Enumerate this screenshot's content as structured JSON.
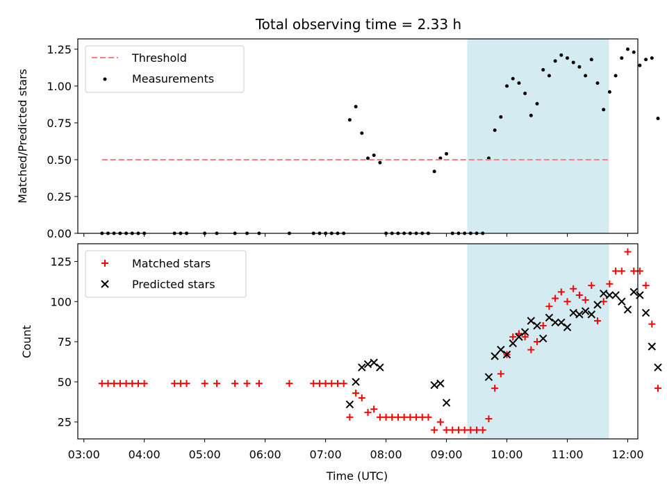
{
  "figure_title": "Total observing time = 2.33 h",
  "colors": {
    "threshold": "#ff7f7f",
    "measurement": "#000000",
    "matched": "#ff0000",
    "predicted": "#000000",
    "span": "#add8e6"
  },
  "chart_data": [
    {
      "type": "scatter",
      "panel": "top",
      "title": "Total observing time = 2.33 h",
      "xlabel": "",
      "ylabel": "Matched/Predicted stars",
      "ylim": [
        0,
        1.32
      ],
      "yticks": [
        0.0,
        0.25,
        0.5,
        0.75,
        1.0,
        1.25
      ],
      "ytick_labels": [
        "0.00",
        "0.25",
        "0.50",
        "0.75",
        "1.00",
        "1.25"
      ],
      "legend_position": "top-left",
      "highlight_span": [
        "09:21",
        "11:41"
      ],
      "threshold": {
        "name": "Threshold",
        "value": 0.5,
        "x_range": [
          "03:18",
          "11:41"
        ]
      },
      "series": [
        {
          "name": "Measurements",
          "points": [
            [
              "03:18",
              0
            ],
            [
              "03:24",
              0
            ],
            [
              "03:30",
              0
            ],
            [
              "03:36",
              0
            ],
            [
              "03:42",
              0
            ],
            [
              "03:48",
              0
            ],
            [
              "03:54",
              0
            ],
            [
              "04:00",
              0
            ],
            [
              "04:30",
              0
            ],
            [
              "04:36",
              0
            ],
            [
              "04:42",
              0
            ],
            [
              "05:00",
              0
            ],
            [
              "05:12",
              0
            ],
            [
              "05:30",
              0
            ],
            [
              "05:42",
              0
            ],
            [
              "05:54",
              0
            ],
            [
              "06:24",
              0
            ],
            [
              "06:48",
              0
            ],
            [
              "06:54",
              0
            ],
            [
              "07:00",
              0
            ],
            [
              "07:06",
              0
            ],
            [
              "07:12",
              0
            ],
            [
              "07:18",
              0
            ],
            [
              "07:24",
              0.77
            ],
            [
              "07:30",
              0.86
            ],
            [
              "07:36",
              0.68
            ],
            [
              "07:42",
              0.51
            ],
            [
              "07:48",
              0.53
            ],
            [
              "07:54",
              0.48
            ],
            [
              "08:00",
              0
            ],
            [
              "08:06",
              0
            ],
            [
              "08:12",
              0
            ],
            [
              "08:18",
              0
            ],
            [
              "08:24",
              0
            ],
            [
              "08:30",
              0
            ],
            [
              "08:36",
              0
            ],
            [
              "08:42",
              0
            ],
            [
              "08:48",
              0.42
            ],
            [
              "08:54",
              0.51
            ],
            [
              "09:00",
              0.54
            ],
            [
              "09:06",
              0
            ],
            [
              "09:12",
              0
            ],
            [
              "09:18",
              0
            ],
            [
              "09:24",
              0
            ],
            [
              "09:30",
              0
            ],
            [
              "09:36",
              0
            ],
            [
              "09:42",
              0.51
            ],
            [
              "09:48",
              0.7
            ],
            [
              "09:54",
              0.79
            ],
            [
              "10:00",
              1.0
            ],
            [
              "10:06",
              1.05
            ],
            [
              "10:12",
              1.02
            ],
            [
              "10:18",
              0.95
            ],
            [
              "10:24",
              0.8
            ],
            [
              "10:30",
              0.88
            ],
            [
              "10:36",
              1.11
            ],
            [
              "10:42",
              1.07
            ],
            [
              "10:48",
              1.17
            ],
            [
              "10:54",
              1.21
            ],
            [
              "11:00",
              1.19
            ],
            [
              "11:06",
              1.16
            ],
            [
              "11:12",
              1.13
            ],
            [
              "11:18",
              1.07
            ],
            [
              "11:24",
              1.18
            ],
            [
              "11:30",
              1.02
            ],
            [
              "11:36",
              0.84
            ],
            [
              "11:42",
              0.96
            ],
            [
              "11:48",
              1.07
            ],
            [
              "11:54",
              1.19
            ],
            [
              "12:00",
              1.25
            ],
            [
              "12:06",
              1.23
            ],
            [
              "12:12",
              1.14
            ],
            [
              "12:18",
              1.18
            ],
            [
              "12:24",
              1.19
            ],
            [
              "12:30",
              0.78
            ]
          ]
        }
      ]
    },
    {
      "type": "scatter",
      "panel": "bottom",
      "xlabel": "Time (UTC)",
      "ylabel": "Count",
      "ylim": [
        14.5,
        136
      ],
      "yticks": [
        25,
        50,
        75,
        100,
        125
      ],
      "ytick_labels": [
        "25",
        "50",
        "75",
        "100",
        "125"
      ],
      "xlim": [
        "02:54",
        "12:10"
      ],
      "xticks": [
        "03:00",
        "04:00",
        "05:00",
        "06:00",
        "07:00",
        "08:00",
        "09:00",
        "10:00",
        "11:00",
        "12:00"
      ],
      "legend_position": "top-left",
      "highlight_span": [
        "09:21",
        "11:41"
      ],
      "series": [
        {
          "name": "Matched stars",
          "points": [
            [
              "03:18",
              49
            ],
            [
              "03:24",
              49
            ],
            [
              "03:30",
              49
            ],
            [
              "03:36",
              49
            ],
            [
              "03:42",
              49
            ],
            [
              "03:48",
              49
            ],
            [
              "03:54",
              49
            ],
            [
              "04:00",
              49
            ],
            [
              "04:30",
              49
            ],
            [
              "04:36",
              49
            ],
            [
              "04:42",
              49
            ],
            [
              "05:00",
              49
            ],
            [
              "05:12",
              49
            ],
            [
              "05:30",
              49
            ],
            [
              "05:42",
              49
            ],
            [
              "05:54",
              49
            ],
            [
              "06:24",
              49
            ],
            [
              "06:48",
              49
            ],
            [
              "06:54",
              49
            ],
            [
              "07:00",
              49
            ],
            [
              "07:06",
              49
            ],
            [
              "07:12",
              49
            ],
            [
              "07:18",
              49
            ],
            [
              "07:24",
              28
            ],
            [
              "07:30",
              43
            ],
            [
              "07:36",
              40
            ],
            [
              "07:42",
              31
            ],
            [
              "07:48",
              33
            ],
            [
              "07:54",
              28
            ],
            [
              "08:00",
              28
            ],
            [
              "08:06",
              28
            ],
            [
              "08:12",
              28
            ],
            [
              "08:18",
              28
            ],
            [
              "08:24",
              28
            ],
            [
              "08:30",
              28
            ],
            [
              "08:36",
              28
            ],
            [
              "08:42",
              28
            ],
            [
              "08:48",
              20
            ],
            [
              "08:54",
              25
            ],
            [
              "09:00",
              20
            ],
            [
              "09:06",
              20
            ],
            [
              "09:12",
              20
            ],
            [
              "09:18",
              20
            ],
            [
              "09:24",
              20
            ],
            [
              "09:30",
              20
            ],
            [
              "09:36",
              20
            ],
            [
              "09:42",
              27
            ],
            [
              "09:48",
              46
            ],
            [
              "09:54",
              55
            ],
            [
              "10:00",
              67
            ],
            [
              "10:06",
              78
            ],
            [
              "10:12",
              80
            ],
            [
              "10:18",
              78
            ],
            [
              "10:24",
              70
            ],
            [
              "10:30",
              75
            ],
            [
              "10:36",
              85
            ],
            [
              "10:42",
              97
            ],
            [
              "10:48",
              102
            ],
            [
              "10:54",
              106
            ],
            [
              "11:00",
              100
            ],
            [
              "11:06",
              108
            ],
            [
              "11:12",
              104
            ],
            [
              "11:18",
              101
            ],
            [
              "11:24",
              110
            ],
            [
              "11:30",
              88
            ],
            [
              "11:36",
              100
            ],
            [
              "11:42",
              111
            ],
            [
              "11:48",
              119
            ],
            [
              "11:54",
              119
            ],
            [
              "12:00",
              131
            ],
            [
              "12:06",
              119
            ],
            [
              "12:12",
              119
            ],
            [
              "12:18",
              110
            ],
            [
              "12:24",
              86
            ],
            [
              "12:30",
              46
            ]
          ]
        },
        {
          "name": "Predicted stars",
          "points": [
            [
              "07:24",
              36
            ],
            [
              "07:30",
              50
            ],
            [
              "07:36",
              59
            ],
            [
              "07:42",
              61
            ],
            [
              "07:48",
              62
            ],
            [
              "07:54",
              59
            ],
            [
              "08:48",
              48
            ],
            [
              "08:54",
              49
            ],
            [
              "09:00",
              37
            ],
            [
              "09:42",
              53
            ],
            [
              "09:48",
              66
            ],
            [
              "09:54",
              70
            ],
            [
              "10:00",
              67
            ],
            [
              "10:06",
              74
            ],
            [
              "10:12",
              78
            ],
            [
              "10:18",
              81
            ],
            [
              "10:24",
              88
            ],
            [
              "10:30",
              85
            ],
            [
              "10:36",
              77
            ],
            [
              "10:42",
              90
            ],
            [
              "10:48",
              87
            ],
            [
              "10:54",
              87
            ],
            [
              "11:00",
              84
            ],
            [
              "11:06",
              93
            ],
            [
              "11:12",
              92
            ],
            [
              "11:18",
              94
            ],
            [
              "11:24",
              92
            ],
            [
              "11:30",
              98
            ],
            [
              "11:36",
              105
            ],
            [
              "11:42",
              104
            ],
            [
              "11:48",
              104
            ],
            [
              "11:54",
              100
            ],
            [
              "12:00",
              95
            ],
            [
              "12:06",
              106
            ],
            [
              "12:12",
              104
            ],
            [
              "12:18",
              93
            ],
            [
              "12:24",
              72
            ],
            [
              "12:30",
              59
            ]
          ]
        }
      ]
    }
  ]
}
